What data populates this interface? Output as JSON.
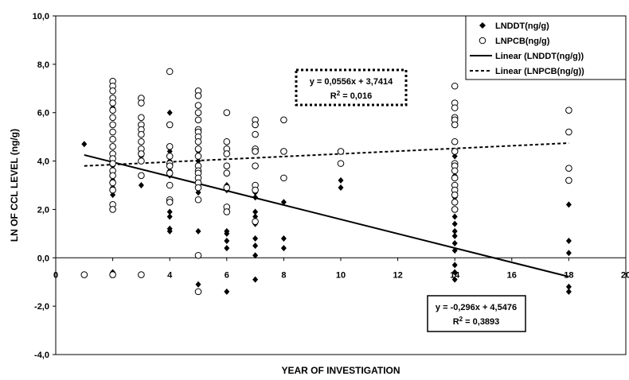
{
  "chart_data": {
    "type": "scatter",
    "xlabel": "YEAR OF INVESTIGATION",
    "ylabel": "LN OF CCL LEVEL  (ng/g)",
    "xlim": [
      0,
      20
    ],
    "ylim": [
      -4,
      10
    ],
    "x_ticks": [
      0,
      2,
      4,
      6,
      8,
      10,
      12,
      14,
      16,
      18,
      20
    ],
    "y_ticks": [
      "10,0",
      "8,0",
      "6,0",
      "4,0",
      "2,0",
      "0,0",
      "-2,0",
      "-4,0"
    ],
    "y_tick_values": [
      10,
      8,
      6,
      4,
      2,
      0,
      -2,
      -4
    ],
    "grid": false,
    "legend_position": "top-right",
    "legend": [
      "LNDDT(ng/g)",
      "LNPCB(ng/g)",
      "Linear (LNDDT(ng/g))",
      "Linear (LNPCB(ng/g))"
    ],
    "series": [
      {
        "name": "LNDDT(ng/g)",
        "marker": "diamond-filled",
        "points": [
          [
            1,
            4.7
          ],
          [
            2,
            6.2
          ],
          [
            2,
            5.8
          ],
          [
            2,
            5.5
          ],
          [
            2,
            5.2
          ],
          [
            2,
            4.9
          ],
          [
            2,
            4.6
          ],
          [
            2,
            4.3
          ],
          [
            2,
            4.0
          ],
          [
            2,
            3.8
          ],
          [
            2,
            3.5
          ],
          [
            2,
            3.2
          ],
          [
            2,
            2.9
          ],
          [
            2,
            2.6
          ],
          [
            2,
            -0.6
          ],
          [
            3,
            4.2
          ],
          [
            3,
            3.0
          ],
          [
            3,
            4.0
          ],
          [
            4,
            6.0
          ],
          [
            4,
            4.4
          ],
          [
            4,
            4.0
          ],
          [
            4,
            3.9
          ],
          [
            4,
            3.6
          ],
          [
            4,
            3.4
          ],
          [
            4,
            1.9
          ],
          [
            4,
            1.7
          ],
          [
            4,
            1.2
          ],
          [
            4,
            1.1
          ],
          [
            5,
            4.4
          ],
          [
            5,
            4.0
          ],
          [
            5,
            3.8
          ],
          [
            5,
            3.6
          ],
          [
            5,
            3.5
          ],
          [
            5,
            3.3
          ],
          [
            5,
            3.1
          ],
          [
            5,
            2.9
          ],
          [
            5,
            2.7
          ],
          [
            5,
            1.1
          ],
          [
            5,
            -1.1
          ],
          [
            6,
            3.5
          ],
          [
            6,
            3.0
          ],
          [
            6,
            2.8
          ],
          [
            6,
            2.0
          ],
          [
            6,
            1.1
          ],
          [
            6,
            1.0
          ],
          [
            6,
            0.7
          ],
          [
            6,
            0.4
          ],
          [
            6,
            -1.4
          ],
          [
            7,
            3.0
          ],
          [
            7,
            2.7
          ],
          [
            7,
            2.5
          ],
          [
            7,
            1.9
          ],
          [
            7,
            1.7
          ],
          [
            7,
            1.4
          ],
          [
            7,
            0.8
          ],
          [
            7,
            0.5
          ],
          [
            7,
            0.1
          ],
          [
            7,
            -0.9
          ],
          [
            8,
            2.3
          ],
          [
            8,
            0.8
          ],
          [
            8,
            0.4
          ],
          [
            10,
            3.2
          ],
          [
            10,
            2.9
          ],
          [
            14,
            4.2
          ],
          [
            14,
            3.4
          ],
          [
            14,
            3.0
          ],
          [
            14,
            2.5
          ],
          [
            14,
            1.7
          ],
          [
            14,
            1.4
          ],
          [
            14,
            1.1
          ],
          [
            14,
            0.9
          ],
          [
            14,
            0.6
          ],
          [
            14,
            0.3
          ],
          [
            14,
            -0.3
          ],
          [
            14,
            -0.6
          ],
          [
            14,
            -0.9
          ],
          [
            14,
            -1.7
          ],
          [
            18,
            2.2
          ],
          [
            18,
            0.7
          ],
          [
            18,
            0.2
          ],
          [
            18,
            -1.2
          ],
          [
            18,
            -1.4
          ]
        ]
      },
      {
        "name": "LNPCB(ng/g)",
        "marker": "circle-open",
        "points": [
          [
            1,
            -0.7
          ],
          [
            2,
            7.3
          ],
          [
            2,
            7.1
          ],
          [
            2,
            6.9
          ],
          [
            2,
            6.6
          ],
          [
            2,
            6.4
          ],
          [
            2,
            6.1
          ],
          [
            2,
            5.8
          ],
          [
            2,
            5.5
          ],
          [
            2,
            5.2
          ],
          [
            2,
            4.9
          ],
          [
            2,
            4.6
          ],
          [
            2,
            4.3
          ],
          [
            2,
            4.1
          ],
          [
            2,
            3.9
          ],
          [
            2,
            3.6
          ],
          [
            2,
            3.4
          ],
          [
            2,
            3.1
          ],
          [
            2,
            2.8
          ],
          [
            2,
            2.2
          ],
          [
            2,
            2.0
          ],
          [
            2,
            -0.7
          ],
          [
            3,
            6.6
          ],
          [
            3,
            6.4
          ],
          [
            3,
            5.8
          ],
          [
            3,
            5.5
          ],
          [
            3,
            5.3
          ],
          [
            3,
            5.1
          ],
          [
            3,
            4.8
          ],
          [
            3,
            4.5
          ],
          [
            3,
            4.3
          ],
          [
            3,
            4.0
          ],
          [
            3,
            3.4
          ],
          [
            3,
            -0.7
          ],
          [
            4,
            7.7
          ],
          [
            4,
            5.5
          ],
          [
            4,
            4.6
          ],
          [
            4,
            4.2
          ],
          [
            4,
            3.9
          ],
          [
            4,
            3.8
          ],
          [
            4,
            3.5
          ],
          [
            4,
            3.0
          ],
          [
            4,
            2.4
          ],
          [
            4,
            2.3
          ],
          [
            5,
            6.9
          ],
          [
            5,
            6.7
          ],
          [
            5,
            6.3
          ],
          [
            5,
            6.0
          ],
          [
            5,
            5.7
          ],
          [
            5,
            5.3
          ],
          [
            5,
            5.2
          ],
          [
            5,
            5.0
          ],
          [
            5,
            4.8
          ],
          [
            5,
            4.5
          ],
          [
            5,
            4.2
          ],
          [
            5,
            3.8
          ],
          [
            5,
            3.6
          ],
          [
            5,
            3.5
          ],
          [
            5,
            3.3
          ],
          [
            5,
            3.1
          ],
          [
            5,
            2.9
          ],
          [
            5,
            2.4
          ],
          [
            5,
            0.1
          ],
          [
            5,
            -1.4
          ],
          [
            6,
            6.0
          ],
          [
            6,
            4.8
          ],
          [
            6,
            4.5
          ],
          [
            6,
            4.3
          ],
          [
            6,
            3.8
          ],
          [
            6,
            3.5
          ],
          [
            6,
            2.9
          ],
          [
            6,
            2.1
          ],
          [
            6,
            1.9
          ],
          [
            7,
            5.7
          ],
          [
            7,
            5.5
          ],
          [
            7,
            5.1
          ],
          [
            7,
            4.5
          ],
          [
            7,
            4.4
          ],
          [
            7,
            3.8
          ],
          [
            7,
            3.0
          ],
          [
            7,
            2.8
          ],
          [
            7,
            1.5
          ],
          [
            8,
            5.7
          ],
          [
            8,
            4.4
          ],
          [
            8,
            3.3
          ],
          [
            10,
            4.4
          ],
          [
            10,
            3.9
          ],
          [
            14,
            7.1
          ],
          [
            14,
            6.4
          ],
          [
            14,
            6.2
          ],
          [
            14,
            5.8
          ],
          [
            14,
            5.7
          ],
          [
            14,
            5.5
          ],
          [
            14,
            4.8
          ],
          [
            14,
            4.4
          ],
          [
            14,
            3.9
          ],
          [
            14,
            3.8
          ],
          [
            14,
            3.6
          ],
          [
            14,
            3.3
          ],
          [
            14,
            3.0
          ],
          [
            14,
            2.8
          ],
          [
            14,
            2.6
          ],
          [
            14,
            2.3
          ],
          [
            14,
            2.0
          ],
          [
            18,
            6.1
          ],
          [
            18,
            5.2
          ],
          [
            18,
            3.7
          ],
          [
            18,
            3.2
          ]
        ]
      }
    ],
    "trendlines": [
      {
        "name": "Linear (LNDDT(ng/g))",
        "slope": -0.296,
        "intercept": 4.5476,
        "x_range": [
          1,
          18
        ],
        "style": "solid",
        "equation": "y = -0,296x + 4,5476",
        "r2_prefix": "R",
        "r2_sup": "2",
        "r2_value": " = 0,3893"
      },
      {
        "name": "Linear (LNPCB(ng/g))",
        "slope": 0.0556,
        "intercept": 3.7414,
        "x_range": [
          1,
          18
        ],
        "style": "dashed",
        "equation": "y = 0,0556x + 3,7414",
        "r2_prefix": "R",
        "r2_sup": "2",
        "r2_value": " = 0,016"
      }
    ]
  }
}
